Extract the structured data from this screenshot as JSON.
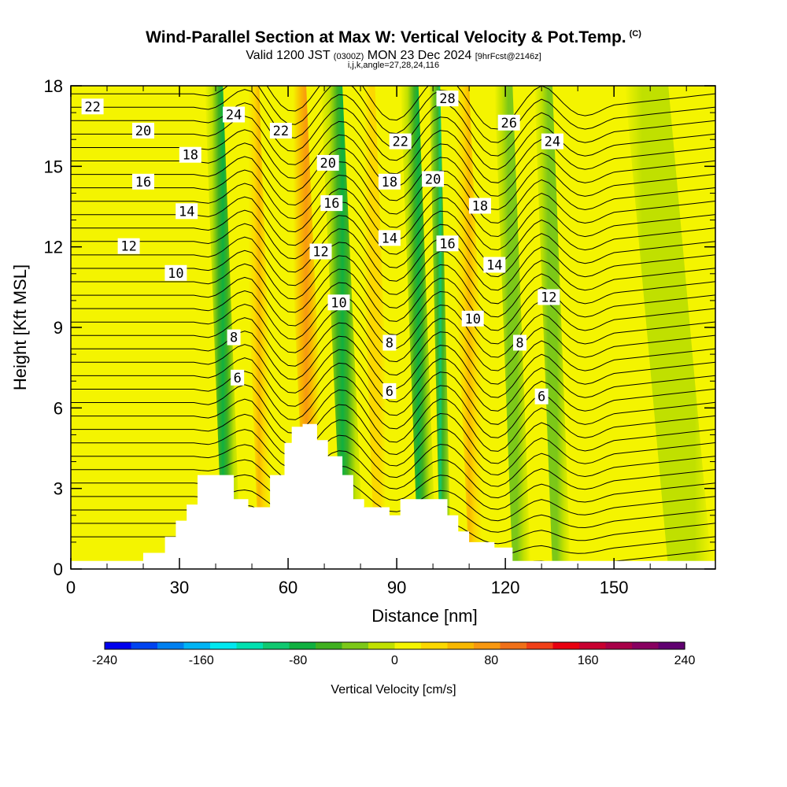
{
  "header": {
    "title": "Wind-Parallel Section at Max W: Vertical Velocity & Pot.Temp.",
    "copyright": "(C)",
    "valid_prefix": "Valid 1200 JST",
    "valid_utc": "(0300Z)",
    "valid_date": "MON 23 Dec 2024",
    "forecast": "[9hrFcst@2146z]",
    "section_params": "i,j,k,angle=27,28,24,116"
  },
  "chart_data": {
    "type": "heatmap",
    "xlabel": "Distance [nm]",
    "ylabel": "Height [Kft MSL]",
    "xlim": [
      0,
      178
    ],
    "ylim": [
      0,
      18
    ],
    "x_ticks": [
      0,
      30,
      60,
      90,
      120,
      150
    ],
    "y_ticks": [
      0,
      3,
      6,
      9,
      12,
      15,
      18
    ],
    "colorbar": {
      "label": "Vertical Velocity [cm/s]",
      "range": [
        -240,
        240
      ],
      "ticks": [
        -240,
        -160,
        -80,
        0,
        80,
        160,
        240
      ],
      "colors": [
        "#0000ee",
        "#0044f0",
        "#0080f0",
        "#00b4f4",
        "#00e8f0",
        "#00e0b0",
        "#10c870",
        "#10b040",
        "#40b020",
        "#7cc818",
        "#c0e000",
        "#f4f400",
        "#fcd800",
        "#f8b800",
        "#f89810",
        "#f07018",
        "#f04018",
        "#e80010",
        "#c80030",
        "#a80048",
        "#880060",
        "#600070"
      ]
    },
    "terrain_profile": {
      "x_nm": [
        0,
        20,
        20,
        26,
        26,
        29,
        29,
        32,
        32,
        35,
        35,
        45,
        45,
        49,
        49,
        52,
        52,
        55,
        55,
        59,
        59,
        61,
        61,
        64,
        64,
        68,
        68,
        71,
        71,
        75,
        75,
        78,
        78,
        81,
        81,
        84,
        84,
        88,
        88,
        91,
        91,
        94,
        94,
        104,
        104,
        107,
        107,
        110,
        110,
        117,
        117,
        122,
        122,
        143,
        143
      ],
      "height_kft": [
        0.3,
        0.3,
        0.6,
        0.6,
        1.2,
        1.2,
        1.8,
        1.8,
        2.4,
        2.4,
        3.5,
        3.5,
        2.6,
        2.6,
        2.3,
        2.3,
        2.3,
        2.3,
        3.5,
        3.5,
        4.7,
        4.7,
        5.3,
        5.3,
        5.4,
        5.4,
        4.8,
        4.8,
        4.2,
        4.2,
        3.5,
        3.5,
        2.6,
        2.6,
        2.3,
        2.3,
        2.3,
        2.3,
        2.0,
        2.0,
        2.6,
        2.6,
        2.6,
        2.6,
        2.0,
        2.0,
        1.4,
        1.4,
        1.0,
        1.0,
        0.8,
        0.8,
        0.3,
        0.3,
        0.3
      ]
    },
    "vertical_velocity_bands": [
      {
        "x_nm": 42,
        "width_nm": 5,
        "value_cm_s": -80
      },
      {
        "x_nm": 52,
        "width_nm": 5,
        "value_cm_s": 60
      },
      {
        "x_nm": 65,
        "width_nm": 6,
        "value_cm_s": 80
      },
      {
        "x_nm": 75,
        "width_nm": 6,
        "value_cm_s": -80
      },
      {
        "x_nm": 84,
        "width_nm": 5,
        "value_cm_s": 40
      },
      {
        "x_nm": 96,
        "width_nm": 5,
        "value_cm_s": -80
      },
      {
        "x_nm": 102,
        "width_nm": 3,
        "value_cm_s": -100
      },
      {
        "x_nm": 110,
        "width_nm": 6,
        "value_cm_s": 60
      },
      {
        "x_nm": 122,
        "width_nm": 5,
        "value_cm_s": -40
      },
      {
        "x_nm": 133,
        "width_nm": 5,
        "value_cm_s": -40
      },
      {
        "x_nm": 165,
        "width_nm": 12,
        "value_cm_s": -20
      }
    ],
    "theta_contour_labels": [
      {
        "value": "22",
        "x_nm": 6,
        "height_kft": 17.2
      },
      {
        "value": "20",
        "x_nm": 20,
        "height_kft": 16.3
      },
      {
        "value": "18",
        "x_nm": 33,
        "height_kft": 15.4
      },
      {
        "value": "16",
        "x_nm": 20,
        "height_kft": 14.4
      },
      {
        "value": "14",
        "x_nm": 32,
        "height_kft": 13.3
      },
      {
        "value": "12",
        "x_nm": 16,
        "height_kft": 12.0
      },
      {
        "value": "10",
        "x_nm": 29,
        "height_kft": 11.0
      },
      {
        "value": "8",
        "x_nm": 45,
        "height_kft": 8.6
      },
      {
        "value": "6",
        "x_nm": 46,
        "height_kft": 7.1
      },
      {
        "value": "24",
        "x_nm": 45,
        "height_kft": 16.9
      },
      {
        "value": "22",
        "x_nm": 58,
        "height_kft": 16.3
      },
      {
        "value": "20",
        "x_nm": 71,
        "height_kft": 15.1
      },
      {
        "value": "16",
        "x_nm": 72,
        "height_kft": 13.6
      },
      {
        "value": "12",
        "x_nm": 69,
        "height_kft": 11.8
      },
      {
        "value": "10",
        "x_nm": 74,
        "height_kft": 9.9
      },
      {
        "value": "22",
        "x_nm": 91,
        "height_kft": 15.9
      },
      {
        "value": "18",
        "x_nm": 88,
        "height_kft": 14.4
      },
      {
        "value": "14",
        "x_nm": 88,
        "height_kft": 12.3
      },
      {
        "value": "8",
        "x_nm": 88,
        "height_kft": 8.4
      },
      {
        "value": "6",
        "x_nm": 88,
        "height_kft": 6.6
      },
      {
        "value": "28",
        "x_nm": 104,
        "height_kft": 17.5
      },
      {
        "value": "20",
        "x_nm": 100,
        "height_kft": 14.5
      },
      {
        "value": "16",
        "x_nm": 104,
        "height_kft": 12.1
      },
      {
        "value": "10",
        "x_nm": 111,
        "height_kft": 9.3
      },
      {
        "value": "26",
        "x_nm": 121,
        "height_kft": 16.6
      },
      {
        "value": "18",
        "x_nm": 113,
        "height_kft": 13.5
      },
      {
        "value": "14",
        "x_nm": 117,
        "height_kft": 11.3
      },
      {
        "value": "8",
        "x_nm": 124,
        "height_kft": 8.4
      },
      {
        "value": "6",
        "x_nm": 130,
        "height_kft": 6.4
      },
      {
        "value": "24",
        "x_nm": 133,
        "height_kft": 15.9
      },
      {
        "value": "12",
        "x_nm": 132,
        "height_kft": 10.1
      }
    ]
  }
}
